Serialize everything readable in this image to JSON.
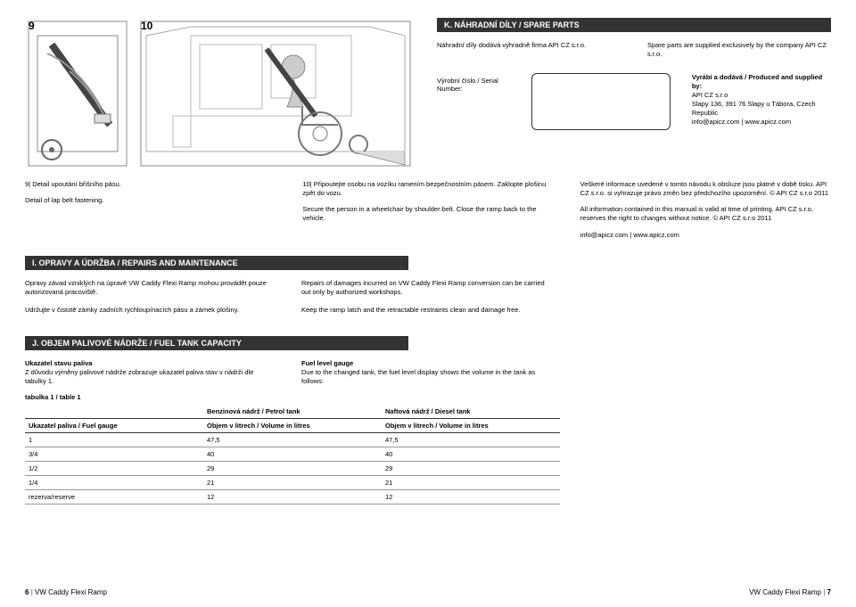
{
  "figures": {
    "n9": "9",
    "n10": "10"
  },
  "sectionK": {
    "bar": "K.  NÁHRADNÍ DÍLY / SPARE PARTS",
    "cz": "Náhradní díly dodává výhradně firma API CZ s.r.o.",
    "en": "Spare parts are supplied exclusively by the company API CZ s.r.o."
  },
  "serial": {
    "label": "Výrobní číslo / Serial Number:"
  },
  "producer": {
    "l1": "Vyrábí a dodává / Produced and supplied by:",
    "l2": "API CZ s.r.o",
    "l3": "Slapy 136, 391 76 Slapy u Tábora, Czech Republic",
    "l4": "info@apicz.com | www.apicz.com"
  },
  "mid": {
    "c1a": "9|  Detail upoutání břišního pásu.",
    "c1b": "Detail of lap belt fastening.",
    "c2a": "10|  Připoutejte osobu na vozíku ramením bezpečnostním pásem. Zaklopte plošinu zpět do vozu.",
    "c2b": "Secure the person in a wheelchair by shoulder belt. Close the ramp back to the vehicle.",
    "c3a": "Veškeré informace uvedené v tomto návodu k obsluze jsou platné v době tisku. API CZ s.r.o. si vyhrazuje právo změn bez předchozího upozornění. © API CZ s.r.o 2011",
    "c3b": "All information contained in this manual is valid at time of printing. API CZ s.r.o. reserves the right to changes without notice. © API CZ s.r.o 2011",
    "c3c": "info@apicz.com | www.apicz.com"
  },
  "sectionI": {
    "bar": "I.   OPRAVY A ÚDRŽBA / REPAIRS AND MAINTENANCE"
  },
  "maint": {
    "cz1": "Opravy závad vzniklých na úpravě VW Caddy Flexi Ramp mohou provádět pouze autorizovaná pracoviště.",
    "cz2": "Udržujte v čistotě zámky zadních rychloupínacích pásu a zámek plošiny.",
    "en1": "Repairs of damages incurred on VW Caddy Flexi Ramp conversion can be carried out only by authorized workshops.",
    "en2": "Keep the ramp latch and the retractable restraints clean and damage free."
  },
  "sectionJ": {
    "bar": "J.   OBJEM PALIVOVÉ NÁDRŽE / FUEL TANK CAPACITY"
  },
  "gauge": {
    "czTitle": "Ukazatel stavu paliva",
    "czBody": "Z důvodu výměny palivové nádrže zobrazuje ukazatel paliva stav v nádrži dle tabulky 1.",
    "enTitle": "Fuel level gauge",
    "enBody": "Due to the changed tank, the fuel level display shows the volume in the tank as follows:"
  },
  "table": {
    "label": "tabulka 1 / table 1",
    "h1": "",
    "h2": "Benzinová nádrž / Petrol tank",
    "h3": "Naftová nádrž / Diesel tank",
    "sub1": "Ukazatel paliva / Fuel gauge",
    "sub2": "Objem v litrech / Volume in litres",
    "sub3": "Objem v litrech / Volume in litres",
    "rows": [
      [
        "1",
        "47,5",
        "47,5"
      ],
      [
        "3/4",
        "40",
        "40"
      ],
      [
        "1/2",
        "29",
        "29"
      ],
      [
        "1/4",
        "21",
        "21"
      ],
      [
        "rezerva/reserve",
        "12",
        "12"
      ]
    ]
  },
  "footer": {
    "leftNum": "6",
    "leftText": "VW Caddy Flexi Ramp",
    "rightText": "VW Caddy Flexi Ramp",
    "rightNum": "7"
  }
}
